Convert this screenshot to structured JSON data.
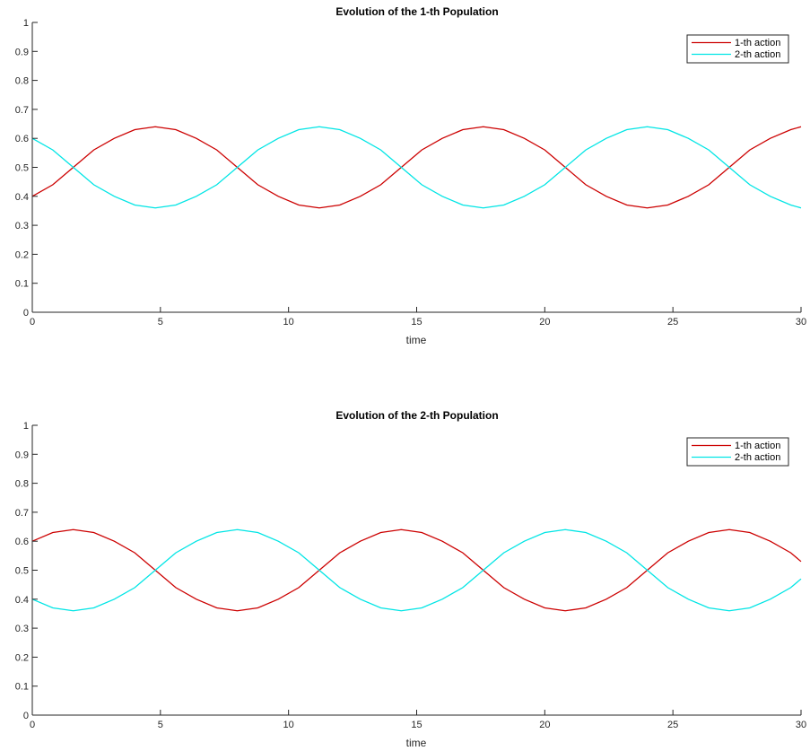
{
  "chart_data": [
    {
      "type": "line",
      "title": "Evolution of the 1-th Population",
      "xlabel": "time",
      "ylabel": "",
      "xlim": [
        0,
        30
      ],
      "ylim": [
        0,
        1
      ],
      "xticks": [
        0,
        5,
        10,
        15,
        20,
        25,
        30
      ],
      "yticks": [
        0,
        0.1,
        0.2,
        0.3,
        0.4,
        0.5,
        0.6,
        0.7,
        0.8,
        0.9,
        1
      ],
      "grid": false,
      "legend_position": "top-right",
      "series": [
        {
          "name": "1-th action",
          "color": "#cc0000",
          "x": [
            0,
            0.8,
            1.6,
            2.4,
            3.2,
            4.0,
            4.8,
            5.6,
            6.4,
            7.2,
            8.0,
            8.8,
            9.6,
            10.4,
            11.2,
            12.0,
            12.8,
            13.6,
            14.4,
            15.2,
            16.0,
            16.8,
            17.6,
            18.4,
            19.2,
            20.0,
            20.8,
            21.6,
            22.4,
            23.2,
            24.0,
            24.8,
            25.6,
            26.4,
            27.2,
            28.0,
            28.8,
            29.6,
            30.0
          ],
          "values": [
            0.4,
            0.44,
            0.5,
            0.56,
            0.6,
            0.63,
            0.64,
            0.63,
            0.6,
            0.56,
            0.5,
            0.44,
            0.4,
            0.37,
            0.36,
            0.37,
            0.4,
            0.44,
            0.5,
            0.56,
            0.6,
            0.63,
            0.64,
            0.63,
            0.6,
            0.56,
            0.5,
            0.44,
            0.4,
            0.37,
            0.36,
            0.37,
            0.4,
            0.44,
            0.5,
            0.56,
            0.6,
            0.63,
            0.64
          ]
        },
        {
          "name": "2-th action",
          "color": "#00e5e5",
          "x": [
            0,
            0.8,
            1.6,
            2.4,
            3.2,
            4.0,
            4.8,
            5.6,
            6.4,
            7.2,
            8.0,
            8.8,
            9.6,
            10.4,
            11.2,
            12.0,
            12.8,
            13.6,
            14.4,
            15.2,
            16.0,
            16.8,
            17.6,
            18.4,
            19.2,
            20.0,
            20.8,
            21.6,
            22.4,
            23.2,
            24.0,
            24.8,
            25.6,
            26.4,
            27.2,
            28.0,
            28.8,
            29.6,
            30.0
          ],
          "values": [
            0.6,
            0.56,
            0.5,
            0.44,
            0.4,
            0.37,
            0.36,
            0.37,
            0.4,
            0.44,
            0.5,
            0.56,
            0.6,
            0.63,
            0.64,
            0.63,
            0.6,
            0.56,
            0.5,
            0.44,
            0.4,
            0.37,
            0.36,
            0.37,
            0.4,
            0.44,
            0.5,
            0.56,
            0.6,
            0.63,
            0.64,
            0.63,
            0.6,
            0.56,
            0.5,
            0.44,
            0.4,
            0.37,
            0.36
          ]
        }
      ]
    },
    {
      "type": "line",
      "title": "Evolution of the 2-th Population",
      "xlabel": "time",
      "ylabel": "",
      "xlim": [
        0,
        30
      ],
      "ylim": [
        0,
        1
      ],
      "xticks": [
        0,
        5,
        10,
        15,
        20,
        25,
        30
      ],
      "yticks": [
        0,
        0.1,
        0.2,
        0.3,
        0.4,
        0.5,
        0.6,
        0.7,
        0.8,
        0.9,
        1
      ],
      "grid": false,
      "legend_position": "top-right",
      "series": [
        {
          "name": "1-th action",
          "color": "#cc0000",
          "x": [
            0,
            0.8,
            1.6,
            2.4,
            3.2,
            4.0,
            4.8,
            5.6,
            6.4,
            7.2,
            8.0,
            8.8,
            9.6,
            10.4,
            11.2,
            12.0,
            12.8,
            13.6,
            14.4,
            15.2,
            16.0,
            16.8,
            17.6,
            18.4,
            19.2,
            20.0,
            20.8,
            21.6,
            22.4,
            23.2,
            24.0,
            24.8,
            25.6,
            26.4,
            27.2,
            28.0,
            28.8,
            29.6,
            30.0
          ],
          "values": [
            0.6,
            0.63,
            0.64,
            0.63,
            0.6,
            0.56,
            0.5,
            0.44,
            0.4,
            0.37,
            0.36,
            0.37,
            0.4,
            0.44,
            0.5,
            0.56,
            0.6,
            0.63,
            0.64,
            0.63,
            0.6,
            0.56,
            0.5,
            0.44,
            0.4,
            0.37,
            0.36,
            0.37,
            0.4,
            0.44,
            0.5,
            0.56,
            0.6,
            0.63,
            0.64,
            0.63,
            0.6,
            0.56,
            0.53
          ]
        },
        {
          "name": "2-th action",
          "color": "#00e5e5",
          "x": [
            0,
            0.8,
            1.6,
            2.4,
            3.2,
            4.0,
            4.8,
            5.6,
            6.4,
            7.2,
            8.0,
            8.8,
            9.6,
            10.4,
            11.2,
            12.0,
            12.8,
            13.6,
            14.4,
            15.2,
            16.0,
            16.8,
            17.6,
            18.4,
            19.2,
            20.0,
            20.8,
            21.6,
            22.4,
            23.2,
            24.0,
            24.8,
            25.6,
            26.4,
            27.2,
            28.0,
            28.8,
            29.6,
            30.0
          ],
          "values": [
            0.4,
            0.37,
            0.36,
            0.37,
            0.4,
            0.44,
            0.5,
            0.56,
            0.6,
            0.63,
            0.64,
            0.63,
            0.6,
            0.56,
            0.5,
            0.44,
            0.4,
            0.37,
            0.36,
            0.37,
            0.4,
            0.44,
            0.5,
            0.56,
            0.6,
            0.63,
            0.64,
            0.63,
            0.6,
            0.56,
            0.5,
            0.44,
            0.4,
            0.37,
            0.36,
            0.37,
            0.4,
            0.44,
            0.47
          ]
        }
      ]
    }
  ]
}
